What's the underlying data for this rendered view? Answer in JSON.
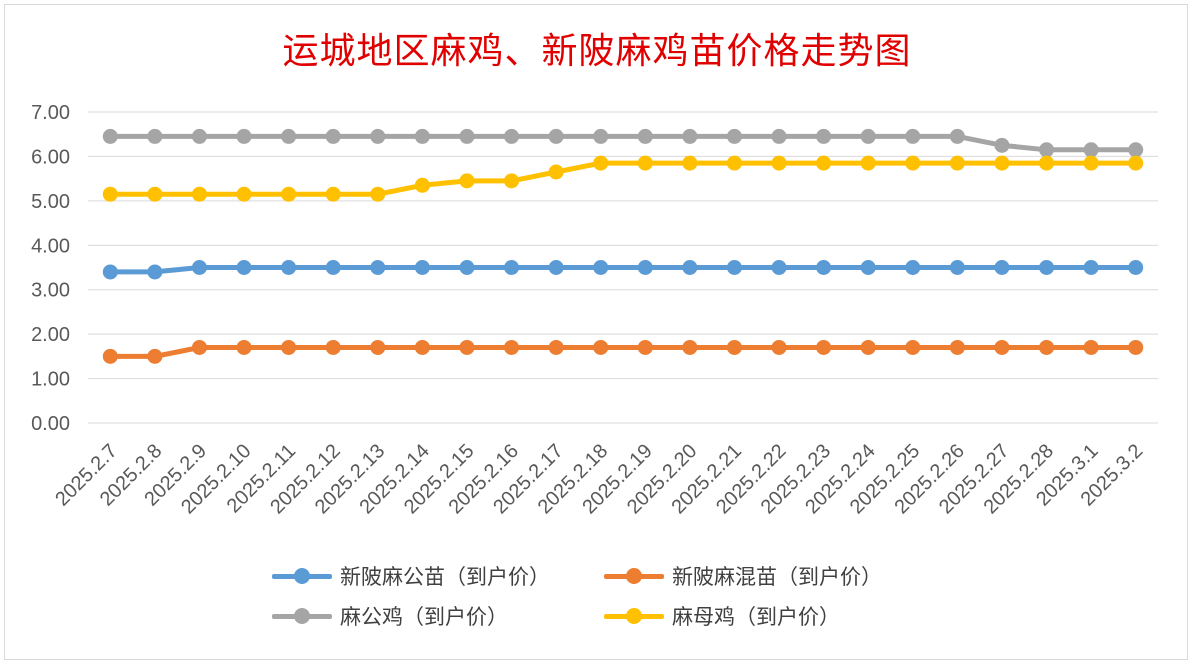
{
  "chart_data": {
    "type": "line",
    "title": "运城地区麻鸡、新陂麻鸡苗价格走势图",
    "categories": [
      "2025.2.7",
      "2025.2.8",
      "2025.2.9",
      "2025.2.10",
      "2025.2.11",
      "2025.2.12",
      "2025.2.13",
      "2025.2.14",
      "2025.2.15",
      "2025.2.16",
      "2025.2.17",
      "2025.2.18",
      "2025.2.19",
      "2025.2.20",
      "2025.2.21",
      "2025.2.22",
      "2025.2.23",
      "2025.2.24",
      "2025.2.25",
      "2025.2.26",
      "2025.2.27",
      "2025.2.28",
      "2025.3.1",
      "2025.3.2"
    ],
    "ylim": [
      0,
      7
    ],
    "yticks": [
      "0.00",
      "1.00",
      "2.00",
      "3.00",
      "4.00",
      "5.00",
      "6.00",
      "7.00"
    ],
    "grid": true,
    "legend_position": "bottom",
    "series": [
      {
        "name": "新陂麻公苗（到户价）",
        "color": "#5b9bd5",
        "values": [
          3.4,
          3.4,
          3.5,
          3.5,
          3.5,
          3.5,
          3.5,
          3.5,
          3.5,
          3.5,
          3.5,
          3.5,
          3.5,
          3.5,
          3.5,
          3.5,
          3.5,
          3.5,
          3.5,
          3.5,
          3.5,
          3.5,
          3.5,
          3.5
        ]
      },
      {
        "name": "新陂麻混苗（到户价）",
        "color": "#ed7d31",
        "values": [
          1.5,
          1.5,
          1.7,
          1.7,
          1.7,
          1.7,
          1.7,
          1.7,
          1.7,
          1.7,
          1.7,
          1.7,
          1.7,
          1.7,
          1.7,
          1.7,
          1.7,
          1.7,
          1.7,
          1.7,
          1.7,
          1.7,
          1.7,
          1.7
        ]
      },
      {
        "name": "麻公鸡（到户价）",
        "color": "#a5a5a5",
        "values": [
          6.45,
          6.45,
          6.45,
          6.45,
          6.45,
          6.45,
          6.45,
          6.45,
          6.45,
          6.45,
          6.45,
          6.45,
          6.45,
          6.45,
          6.45,
          6.45,
          6.45,
          6.45,
          6.45,
          6.45,
          6.25,
          6.15,
          6.15,
          6.15
        ]
      },
      {
        "name": "麻母鸡（到户价）",
        "color": "#ffc000",
        "values": [
          5.15,
          5.15,
          5.15,
          5.15,
          5.15,
          5.15,
          5.15,
          5.35,
          5.45,
          5.45,
          5.65,
          5.85,
          5.85,
          5.85,
          5.85,
          5.85,
          5.85,
          5.85,
          5.85,
          5.85,
          5.85,
          5.85,
          5.85,
          5.85
        ]
      }
    ]
  }
}
